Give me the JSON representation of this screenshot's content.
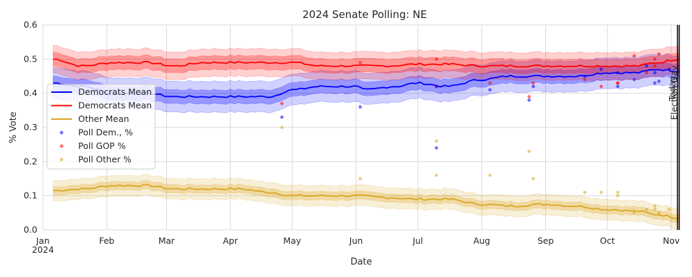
{
  "chart_data": {
    "type": "line",
    "title": "2024 Senate Polling: NE",
    "xlabel": "Date",
    "ylabel": "% Vote",
    "ylim": [
      0.0,
      0.6
    ],
    "xlim": [
      "2024-01-01",
      "2024-11-05"
    ],
    "yticks": [
      0.0,
      0.1,
      0.2,
      0.3,
      0.4,
      0.5,
      0.6
    ],
    "ytick_labels": [
      "0.0",
      "0.1",
      "0.2",
      "0.3",
      "0.4",
      "0.5",
      "0.6"
    ],
    "xticks": [
      {
        "date": "2024-01-01",
        "label": "Jan",
        "sublabel": "2024"
      },
      {
        "date": "2024-02-01",
        "label": "Feb"
      },
      {
        "date": "2024-03-01",
        "label": "Mar"
      },
      {
        "date": "2024-04-01",
        "label": "Apr"
      },
      {
        "date": "2024-05-01",
        "label": "May"
      },
      {
        "date": "2024-06-01",
        "label": "Jun"
      },
      {
        "date": "2024-07-01",
        "label": "Jul"
      },
      {
        "date": "2024-08-01",
        "label": "Aug"
      },
      {
        "date": "2024-09-01",
        "label": "Sep"
      },
      {
        "date": "2024-10-01",
        "label": "Oct"
      },
      {
        "date": "2024-11-01",
        "label": "Nov"
      }
    ],
    "grid": true,
    "legend_position": "center-left",
    "legend": [
      {
        "label": "Democrats Mean",
        "kind": "line",
        "color": "#0000ff"
      },
      {
        "label": "Democrats Mean",
        "kind": "line",
        "color": "#ff0000"
      },
      {
        "label": "Other Mean",
        "kind": "line",
        "color": "#daa520"
      },
      {
        "label": "Poll Dem., %",
        "kind": "dot",
        "color": "#0000ff"
      },
      {
        "label": "Poll GOP %",
        "kind": "dot",
        "color": "#ff0000"
      },
      {
        "label": "Poll Other %",
        "kind": "dot",
        "color": "#daa520"
      }
    ],
    "vlines": [
      {
        "date": "2024-11-04",
        "label": "Today",
        "color": "#000000"
      },
      {
        "date": "2024-11-05",
        "label": "Election Day",
        "color": "#000000"
      }
    ],
    "series": [
      {
        "color": "#0000ff",
        "x": [
          "2024-01-06",
          "2024-01-20",
          "2024-02-05",
          "2024-02-20",
          "2024-03-05",
          "2024-03-20",
          "2024-04-05",
          "2024-04-20",
          "2024-05-01",
          "2024-05-15",
          "2024-06-01",
          "2024-06-05",
          "2024-06-20",
          "2024-07-01",
          "2024-07-15",
          "2024-08-01",
          "2024-08-15",
          "2024-09-01",
          "2024-09-15",
          "2024-10-01",
          "2024-10-15",
          "2024-10-25",
          "2024-11-05"
        ],
        "mean": [
          0.43,
          0.42,
          0.4,
          0.4,
          0.39,
          0.39,
          0.39,
          0.39,
          0.41,
          0.42,
          0.42,
          0.41,
          0.42,
          0.43,
          0.42,
          0.44,
          0.45,
          0.45,
          0.45,
          0.46,
          0.46,
          0.47,
          0.465
        ],
        "band_inner": 0.02,
        "band_outer": 0.045
      },
      {
        "color": "#ff0000",
        "x": [
          "2024-01-06",
          "2024-01-20",
          "2024-02-05",
          "2024-02-20",
          "2024-03-05",
          "2024-03-20",
          "2024-04-05",
          "2024-04-20",
          "2024-05-01",
          "2024-05-15",
          "2024-06-01",
          "2024-06-15",
          "2024-07-01",
          "2024-07-15",
          "2024-08-01",
          "2024-08-15",
          "2024-09-01",
          "2024-09-15",
          "2024-10-01",
          "2024-10-15",
          "2024-10-25",
          "2024-11-05"
        ],
        "mean": [
          0.5,
          0.48,
          0.49,
          0.49,
          0.48,
          0.49,
          0.49,
          0.49,
          0.49,
          0.48,
          0.48,
          0.48,
          0.485,
          0.485,
          0.48,
          0.48,
          0.48,
          0.48,
          0.48,
          0.48,
          0.49,
          0.5
        ],
        "band_inner": 0.02,
        "band_outer": 0.04
      },
      {
        "color": "#daa520",
        "x": [
          "2024-01-06",
          "2024-01-20",
          "2024-02-05",
          "2024-02-20",
          "2024-03-05",
          "2024-03-20",
          "2024-04-05",
          "2024-04-20",
          "2024-05-01",
          "2024-05-15",
          "2024-06-01",
          "2024-06-15",
          "2024-07-01",
          "2024-07-15",
          "2024-08-01",
          "2024-08-15",
          "2024-09-01",
          "2024-09-15",
          "2024-10-01",
          "2024-10-15",
          "2024-10-25",
          "2024-11-05"
        ],
        "mean": [
          0.115,
          0.12,
          0.13,
          0.13,
          0.12,
          0.12,
          0.12,
          0.11,
          0.1,
          0.1,
          0.1,
          0.095,
          0.09,
          0.09,
          0.075,
          0.07,
          0.075,
          0.07,
          0.06,
          0.055,
          0.045,
          0.035
        ],
        "band_inner": 0.012,
        "band_outer": 0.03
      }
    ],
    "polls": [
      {
        "date": "2024-04-26",
        "dem": 0.33,
        "gop": 0.37,
        "other": 0.3
      },
      {
        "date": "2024-06-03",
        "dem": 0.36,
        "gop": 0.49,
        "other": 0.15
      },
      {
        "date": "2024-07-10",
        "dem": 0.24,
        "gop": 0.5,
        "other": 0.26
      },
      {
        "date": "2024-07-10",
        "dem": 0.42,
        "gop": 0.42,
        "other": 0.16
      },
      {
        "date": "2024-08-05",
        "dem": 0.41,
        "gop": 0.43,
        "other": 0.16
      },
      {
        "date": "2024-08-24",
        "dem": 0.38,
        "gop": 0.39,
        "other": 0.23
      },
      {
        "date": "2024-08-26",
        "dem": 0.42,
        "gop": 0.43,
        "other": 0.15
      },
      {
        "date": "2024-09-20",
        "dem": 0.45,
        "gop": 0.44,
        "other": 0.11
      },
      {
        "date": "2024-09-28",
        "dem": 0.47,
        "gop": 0.42,
        "other": 0.11
      },
      {
        "date": "2024-10-06",
        "dem": 0.46,
        "gop": 0.43,
        "other": 0.11
      },
      {
        "date": "2024-10-06",
        "dem": 0.42,
        "gop": 0.43,
        "other": 0.1
      },
      {
        "date": "2024-10-14",
        "dem": 0.44,
        "gop": 0.51,
        "other": 0.05
      },
      {
        "date": "2024-10-20",
        "dem": 0.48,
        "gop": 0.46,
        "other": 0.06
      },
      {
        "date": "2024-10-24",
        "dem": 0.43,
        "gop": 0.5,
        "other": 0.07
      },
      {
        "date": "2024-10-24",
        "dem": 0.46,
        "gop": 0.48,
        "other": 0.06
      },
      {
        "date": "2024-10-26",
        "dem": 0.435,
        "gop": 0.515,
        "other": 0.05
      },
      {
        "date": "2024-10-31",
        "dem": 0.47,
        "gop": 0.47,
        "other": 0.06
      }
    ]
  }
}
